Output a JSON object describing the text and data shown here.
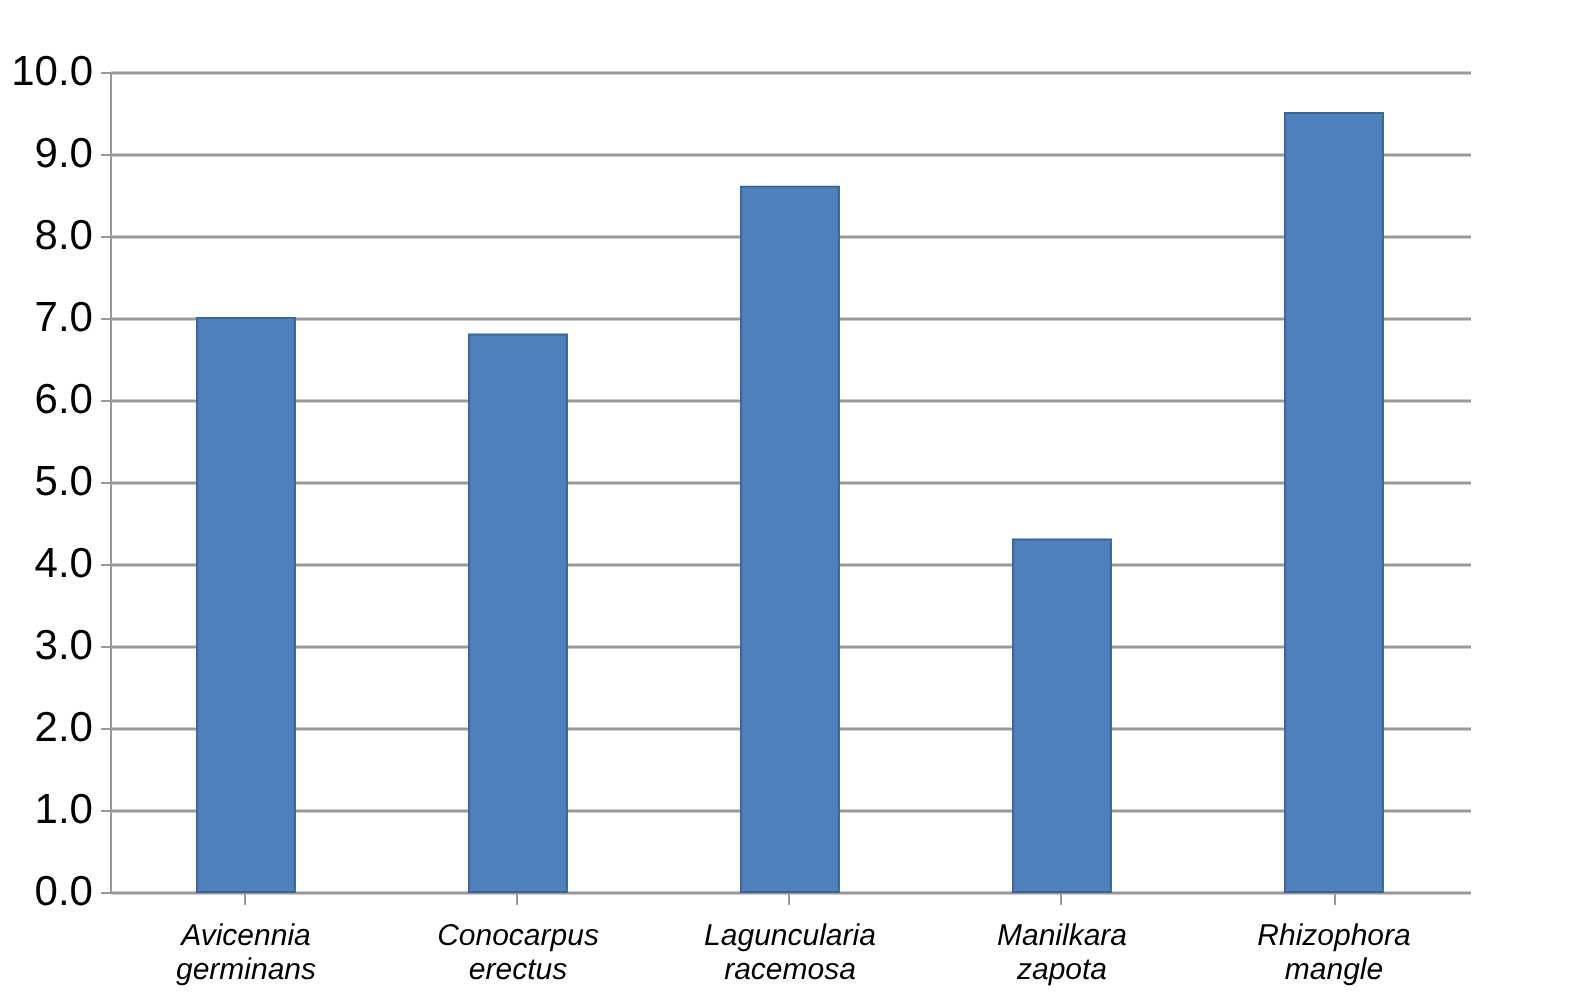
{
  "chart_data": {
    "type": "bar",
    "categories": [
      "Avicennia germinans",
      "Conocarpus erectus",
      "Laguncularia racemosa",
      "Manilkara zapota",
      "Rhizophora mangle"
    ],
    "values": [
      7.0,
      6.8,
      8.6,
      4.3,
      9.5
    ],
    "color": "#4f81bd",
    "ylim": [
      0,
      10
    ],
    "yticks": [
      {
        "value": 0,
        "label": "0.0"
      },
      {
        "value": 1,
        "label": "1.0"
      },
      {
        "value": 2,
        "label": "2.0"
      },
      {
        "value": 3,
        "label": "3.0"
      },
      {
        "value": 4,
        "label": "4.0"
      },
      {
        "value": 5,
        "label": "5.0"
      },
      {
        "value": 6,
        "label": "6.0"
      },
      {
        "value": 7,
        "label": "7.0"
      },
      {
        "value": 8,
        "label": "8.0"
      },
      {
        "value": 9,
        "label": "9.0"
      },
      {
        "value": 10,
        "label": "10.0"
      }
    ],
    "grid": "y"
  }
}
